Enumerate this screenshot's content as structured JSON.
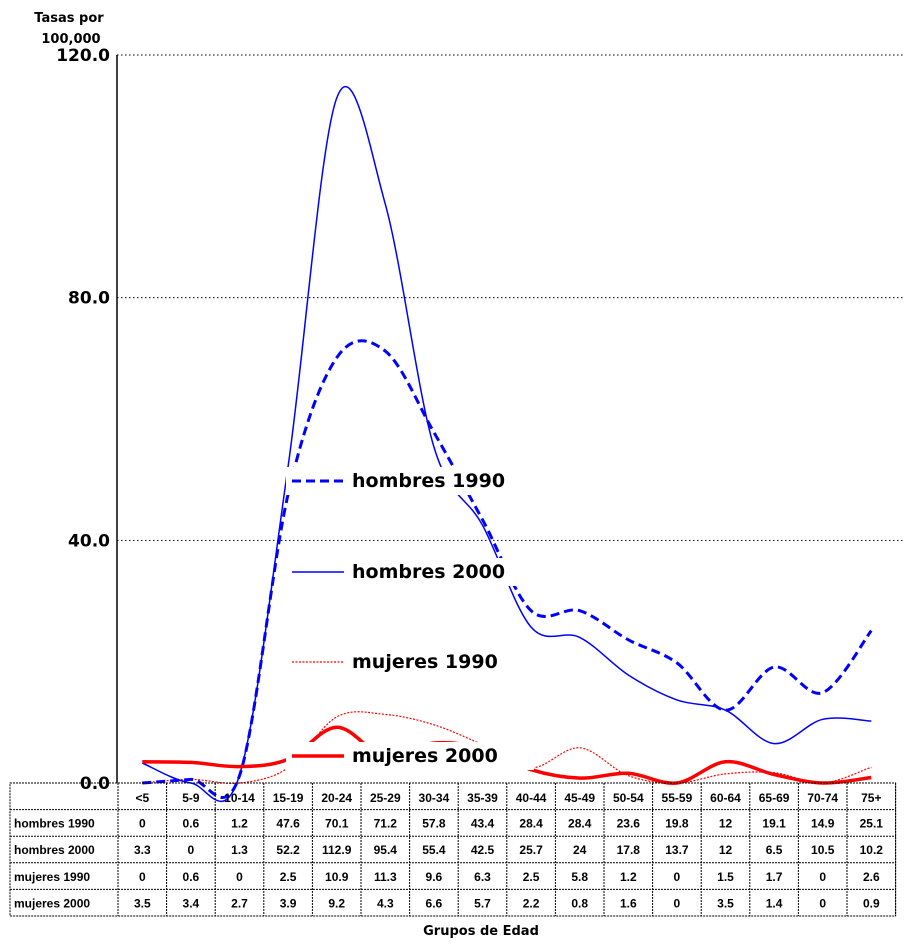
{
  "chart_data": {
    "type": "line",
    "ylabel_lines": [
      "Tasas por",
      "100,000"
    ],
    "xlabel": "Grupos de Edad",
    "ylim": [
      0,
      120
    ],
    "yticks": [
      "0.0",
      "40.0",
      "80.0",
      "120.0"
    ],
    "ytick_values": [
      0,
      40,
      80,
      120
    ],
    "grid": "horizontal dotted",
    "categories": [
      "<5",
      "5-9",
      "10-14",
      "15-19",
      "20-24",
      "25-29",
      "30-34",
      "35-39",
      "40-44",
      "45-49",
      "50-54",
      "55-59",
      "60-64",
      "65-69",
      "70-74",
      "75+"
    ],
    "series": [
      {
        "name": "hombres 1990",
        "values": [
          0,
          0.6,
          1.2,
          47.6,
          70.1,
          71.2,
          57.8,
          43.4,
          28.4,
          28.4,
          23.6,
          19.8,
          12,
          19.1,
          14.9,
          25.1
        ],
        "display": [
          "0",
          "0.6",
          "1.2",
          "47.6",
          "70.1",
          "71.2",
          "57.8",
          "43.4",
          "28.4",
          "28.4",
          "23.6",
          "19.8",
          "12",
          "19.1",
          "14.9",
          "25.1"
        ],
        "color": "#0000ff",
        "style": "dashed-thick"
      },
      {
        "name": "hombres 2000",
        "values": [
          3.3,
          0,
          1.3,
          52.2,
          112.9,
          95.4,
          55.4,
          42.5,
          25.7,
          24,
          17.8,
          13.7,
          12,
          6.5,
          10.5,
          10.2
        ],
        "display": [
          "3.3",
          "0",
          "1.3",
          "52.2",
          "112.9",
          "95.4",
          "55.4",
          "42.5",
          "25.7",
          "24",
          "17.8",
          "13.7",
          "12",
          "6.5",
          "10.5",
          "10.2"
        ],
        "color": "#0000ff",
        "style": "solid-thin"
      },
      {
        "name": "mujeres 1990",
        "values": [
          0,
          0.6,
          0,
          2.5,
          10.9,
          11.3,
          9.6,
          6.3,
          2.5,
          5.8,
          1.2,
          0,
          1.5,
          1.7,
          0,
          2.6
        ],
        "display": [
          "0",
          "0.6",
          "0",
          "2.5",
          "10.9",
          "11.3",
          "9.6",
          "6.3",
          "2.5",
          "5.8",
          "1.2",
          "0",
          "1.5",
          "1.7",
          "0",
          "2.6"
        ],
        "color": "#ff0000",
        "style": "dotted-thin"
      },
      {
        "name": "mujeres 2000",
        "values": [
          3.5,
          3.4,
          2.7,
          3.9,
          9.2,
          4.3,
          6.6,
          5.7,
          2.2,
          0.8,
          1.6,
          0,
          3.5,
          1.4,
          0,
          0.9
        ],
        "display": [
          "3.5",
          "3.4",
          "2.7",
          "3.9",
          "9.2",
          "4.3",
          "6.6",
          "5.7",
          "2.2",
          "0.8",
          "1.6",
          "0",
          "3.5",
          "1.4",
          "0",
          "0.9"
        ],
        "color": "#ff0000",
        "style": "solid-thick"
      }
    ]
  }
}
